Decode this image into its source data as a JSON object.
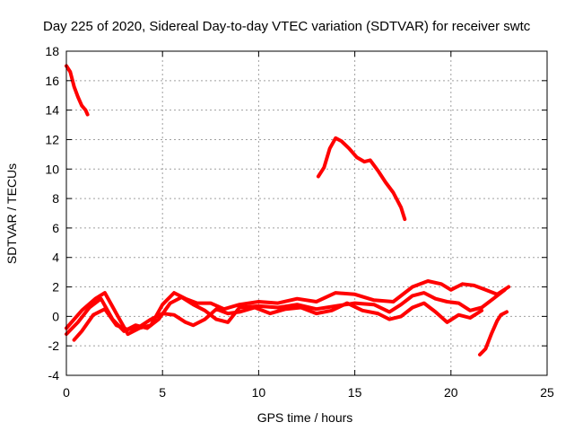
{
  "chart_data": {
    "type": "line",
    "title": "Day 225 of 2020, Sidereal Day-to-day VTEC variation (SDTVAR) for receiver swtc",
    "xlabel": "GPS time / hours",
    "ylabel": "SDTVAR / TECUs",
    "xlim": [
      0,
      25
    ],
    "ylim": [
      -4,
      18
    ],
    "xticks": [
      "0",
      "5",
      "10",
      "15",
      "20",
      "25"
    ],
    "yticks": [
      "-4",
      "-2",
      "0",
      "2",
      "4",
      "6",
      "8",
      "10",
      "12",
      "14",
      "16",
      "18"
    ],
    "grid": true,
    "color": "#ff0000",
    "series": [
      {
        "name": "trace-1",
        "x": [
          0.0,
          0.2,
          0.4,
          0.6,
          0.8,
          1.0,
          1.1
        ],
        "y": [
          17.0,
          16.6,
          15.6,
          14.9,
          14.3,
          14.0,
          13.7
        ]
      },
      {
        "name": "trace-2",
        "x": [
          13.1,
          13.4,
          13.7,
          14.0,
          14.3,
          14.7,
          15.1,
          15.5,
          15.8,
          16.2,
          16.6,
          17.0,
          17.4,
          17.6
        ],
        "y": [
          9.5,
          10.1,
          11.4,
          12.1,
          11.9,
          11.4,
          10.8,
          10.5,
          10.6,
          9.9,
          9.1,
          8.4,
          7.4,
          6.6
        ]
      },
      {
        "name": "trace-3",
        "x": [
          0,
          0.8,
          1.5,
          2.0,
          2.6,
          3.2,
          3.8,
          4.4,
          5.0,
          5.6,
          6.2,
          6.8,
          7.5,
          8.2,
          9.0,
          10.0,
          11.0,
          12.0,
          13.0,
          14.0,
          15.0,
          16.0,
          17.0,
          18.0,
          18.8,
          19.5,
          20.0,
          20.6,
          21.2,
          21.8,
          22.4,
          23.0
        ],
        "y": [
          -0.8,
          0.4,
          1.2,
          1.6,
          0.2,
          -1.2,
          -0.8,
          -0.6,
          0.8,
          1.6,
          1.2,
          0.9,
          0.9,
          0.5,
          0.8,
          1.0,
          0.9,
          1.2,
          1.0,
          1.6,
          1.5,
          1.1,
          1.0,
          2.0,
          2.4,
          2.2,
          1.8,
          2.2,
          2.1,
          1.8,
          1.5,
          2.0
        ]
      },
      {
        "name": "trace-4",
        "x": [
          0,
          0.6,
          1.2,
          1.8,
          2.4,
          3.0,
          3.6,
          4.2,
          4.8,
          5.4,
          6.0,
          6.6,
          7.2,
          7.8,
          8.4,
          9.0,
          10.0,
          11.0,
          12.0,
          13.0,
          14.0,
          15.0,
          16.0,
          16.8,
          17.4,
          18.0,
          18.6,
          19.2,
          19.8,
          20.4,
          21.0,
          21.6,
          22.2,
          22.8
        ],
        "y": [
          -1.2,
          -0.4,
          0.6,
          1.2,
          -0.2,
          -1.0,
          -0.6,
          -0.8,
          -0.2,
          0.9,
          1.3,
          0.8,
          0.4,
          -0.2,
          -0.4,
          0.6,
          0.7,
          0.6,
          0.8,
          0.5,
          0.7,
          0.9,
          0.8,
          0.3,
          0.8,
          1.4,
          1.6,
          1.2,
          1.0,
          0.9,
          0.4,
          0.6,
          1.2,
          1.8
        ]
      },
      {
        "name": "trace-5",
        "x": [
          0.4,
          0.8,
          1.4,
          2.0,
          2.6,
          3.2,
          3.8,
          4.4,
          5.0,
          5.6,
          6.2,
          6.6,
          7.2,
          7.8,
          8.4,
          9.0,
          9.8,
          10.6,
          11.4,
          12.2,
          13.0,
          13.8,
          14.6,
          15.4,
          16.2,
          16.8,
          17.4,
          18.0,
          18.6,
          19.2,
          19.8,
          20.4,
          21.0,
          21.6
        ],
        "y": [
          -1.6,
          -1.0,
          0.1,
          0.5,
          -0.6,
          -0.9,
          -0.7,
          -0.2,
          0.2,
          0.1,
          -0.4,
          -0.6,
          -0.2,
          0.5,
          0.2,
          0.3,
          0.6,
          0.2,
          0.5,
          0.6,
          0.2,
          0.4,
          0.9,
          0.4,
          0.2,
          -0.2,
          0.0,
          0.6,
          0.9,
          0.3,
          -0.4,
          0.1,
          -0.1,
          0.4
        ]
      },
      {
        "name": "trace-6",
        "x": [
          21.5,
          21.8,
          22.1,
          22.4,
          22.6,
          22.9
        ],
        "y": [
          -2.6,
          -2.2,
          -1.2,
          -0.3,
          0.1,
          0.3
        ]
      }
    ]
  }
}
